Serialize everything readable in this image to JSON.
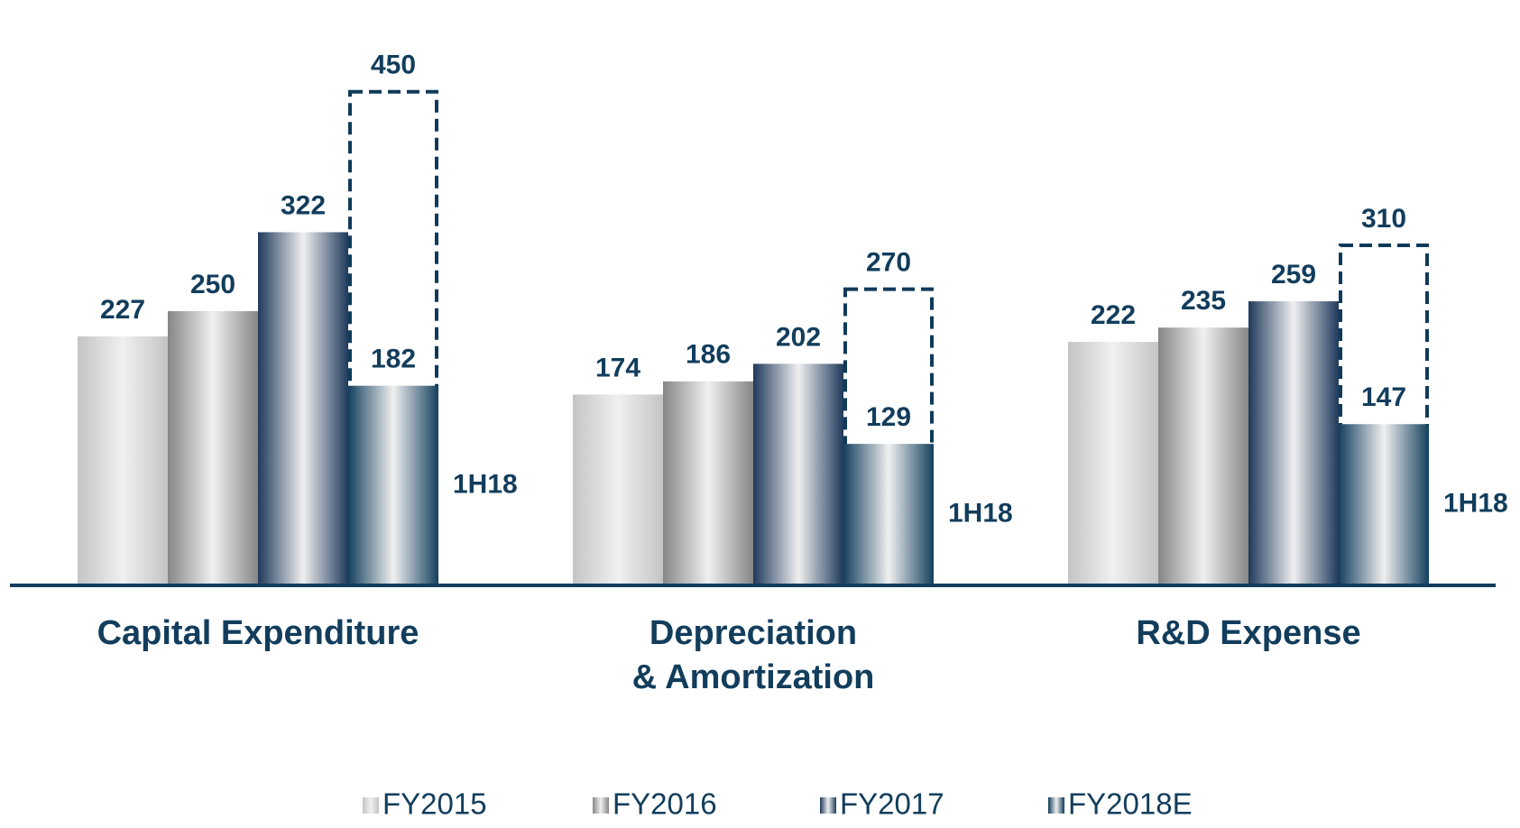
{
  "chart_data": {
    "type": "bar",
    "categories": [
      "Capital Expenditure",
      "Depreciation\n& Amortization",
      "R&D Expense"
    ],
    "series": [
      {
        "name": "FY2015",
        "color": "#c4c4c4",
        "values": [
          227,
          174,
          222
        ]
      },
      {
        "name": "FY2016",
        "color": "#868686",
        "values": [
          250,
          186,
          235
        ]
      },
      {
        "name": "FY2017",
        "color": "#1f3a5c",
        "values": [
          322,
          202,
          259
        ]
      },
      {
        "name": "FY2018E",
        "color": "#0f3a5a",
        "outline": true,
        "values": [
          450,
          270,
          310
        ]
      }
    ],
    "interim": {
      "name": "1H18",
      "color": "#15405f",
      "values": [
        182,
        129,
        147
      ]
    }
  }
}
